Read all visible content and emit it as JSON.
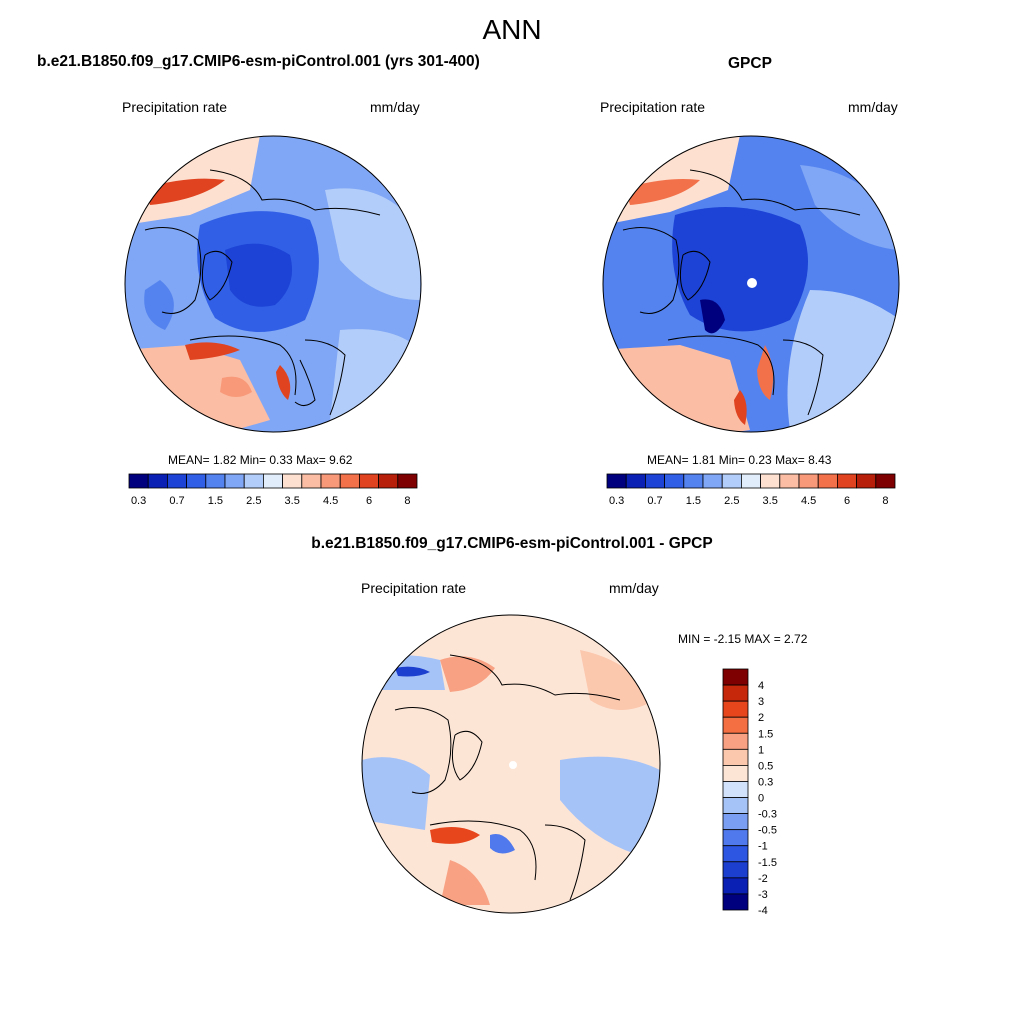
{
  "page": {
    "main_title": "ANN"
  },
  "panels": [
    {
      "title": "b.e21.B1850.f09_g17.CMIP6-esm-piControl.001 (yrs 301-400)",
      "left_label": "Precipitation rate",
      "right_label": "mm/day",
      "stats": "MEAN=   1.82  Min=   0.33  Max=   9.62"
    },
    {
      "title": "GPCP",
      "left_label": "Precipitation rate",
      "right_label": "mm/day",
      "stats": "MEAN=   1.81  Min=   0.23  Max=   8.43"
    },
    {
      "title": "b.e21.B1850.f09_g17.CMIP6-esm-piControl.001 - GPCP",
      "left_label": "Precipitation rate",
      "right_label": "mm/day",
      "stats": "MIN =  -2.15 MAX =   2.72"
    }
  ],
  "colors": {
    "precip_palette": [
      "#00007f",
      "#0a1fb4",
      "#1c43d6",
      "#3160e6",
      "#5483ef",
      "#80a7f5",
      "#b3cdfa",
      "#e2edfb",
      "#fde0d0",
      "#fbbea5",
      "#f89a7a",
      "#f2714a",
      "#e0431f",
      "#b81f0a",
      "#7f0000"
    ],
    "diff_palette": [
      "#00007f",
      "#0a1fb4",
      "#1c3fd0",
      "#2d56e2",
      "#4f79ec",
      "#7a9ef2",
      "#a6c3f7",
      "#d2e2fb",
      "#fde5d6",
      "#fbc7ad",
      "#f8a283",
      "#f46f42",
      "#e7461c",
      "#c5280b",
      "#7f0000"
    ],
    "land_outline": "#000000",
    "missing": "#ffffff"
  },
  "chart_data": [
    {
      "type": "heatmap",
      "title": "b.e21.B1850.f09_g17.CMIP6-esm-piControl.001 (yrs 301-400)",
      "projection": "north-polar-stereographic",
      "variable": "Precipitation rate",
      "units": "mm/day",
      "mean": 1.82,
      "min": 0.33,
      "max": 9.62,
      "levels": [
        0.3,
        0.5,
        0.7,
        1,
        1.5,
        2,
        2.5,
        3,
        3.5,
        4,
        4.5,
        5,
        6,
        7,
        8
      ],
      "tick_labels": [
        "0.3",
        "0.7",
        "1.5",
        "2.5",
        "3.5",
        "4.5",
        "6",
        "8"
      ],
      "colorbar": "horizontal-bottom"
    },
    {
      "type": "heatmap",
      "title": "GPCP",
      "projection": "north-polar-stereographic",
      "variable": "Precipitation rate",
      "units": "mm/day",
      "mean": 1.81,
      "min": 0.23,
      "max": 8.43,
      "levels": [
        0.3,
        0.5,
        0.7,
        1,
        1.5,
        2,
        2.5,
        3,
        3.5,
        4,
        4.5,
        5,
        6,
        7,
        8
      ],
      "tick_labels": [
        "0.3",
        "0.7",
        "1.5",
        "2.5",
        "3.5",
        "4.5",
        "6",
        "8"
      ],
      "colorbar": "horizontal-bottom"
    },
    {
      "type": "heatmap",
      "title": "b.e21.B1850.f09_g17.CMIP6-esm-piControl.001 - GPCP",
      "projection": "north-polar-stereographic",
      "variable": "Precipitation rate",
      "units": "mm/day",
      "min": -2.15,
      "max": 2.72,
      "levels": [
        -4,
        -3,
        -2,
        -1.5,
        -1,
        -0.5,
        -0.3,
        0,
        0.3,
        0.5,
        1,
        1.5,
        2,
        3,
        4
      ],
      "tick_labels": [
        "4",
        "3",
        "2",
        "1.5",
        "1",
        "0.5",
        "0.3",
        "0",
        "-0.3",
        "-0.5",
        "-1",
        "-1.5",
        "-2",
        "-3",
        "-4"
      ],
      "colorbar": "vertical-right"
    }
  ]
}
